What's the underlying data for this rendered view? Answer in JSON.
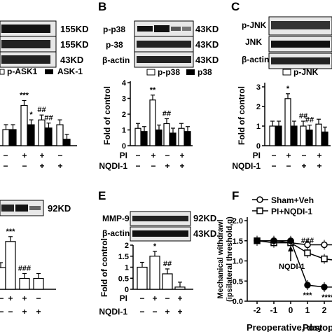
{
  "figure": {
    "panel_letters": {
      "B": "B",
      "C": "C",
      "E": "E",
      "F": "F"
    },
    "blot_a": {
      "rows": [
        "155KD",
        "155KD",
        "43KD"
      ]
    },
    "blot_b": {
      "left": [
        "p-p38",
        "p-38",
        "β-actin"
      ],
      "right": [
        "43KD",
        "43KD",
        "43KD"
      ]
    },
    "blot_c": {
      "left": [
        "p-JNK",
        "JNK",
        "β-actin"
      ]
    },
    "blot_d": {
      "right": "92KD"
    },
    "blot_e": {
      "left": [
        "MMP-9",
        "β-actin"
      ],
      "right": [
        "92KD",
        "43KD"
      ]
    },
    "cond": {
      "pi": "PI",
      "nqdi": "NQDI-1",
      "minus": "−",
      "plus": "+"
    },
    "colors": {
      "ink": "#000000",
      "paper": "#ffffff",
      "blot_bg": "#e8e8e8",
      "band": "#111111"
    }
  },
  "chart_data": [
    {
      "type": "bar",
      "panel": "A",
      "legend": [
        "p-ASK1",
        "ASK-1"
      ],
      "series": [
        {
          "name": "p-ASK1",
          "values": [
            1.0,
            2.5,
            1.6,
            1.3
          ]
        },
        {
          "name": "ASK-1",
          "values": [
            1.0,
            1.3,
            1.1,
            0.4
          ]
        }
      ],
      "annotations": [
        {
          "text": "***",
          "bar": 1,
          "series": 0
        },
        {
          "text": "*",
          "bar": 1,
          "series": 1
        },
        {
          "text": "##",
          "bar": 2,
          "series": 0
        },
        {
          "text": "##",
          "bar": 2,
          "series": 1
        }
      ],
      "conditions": {
        "PI": [
          "−",
          "+",
          "+",
          "−"
        ],
        "NQDI-1": [
          "−",
          "−",
          "+",
          "+"
        ]
      },
      "ylim": [
        0,
        4
      ]
    },
    {
      "type": "bar",
      "panel": "B",
      "legend": [
        "p-p38",
        "p38"
      ],
      "ylabel": "Fold of control",
      "ylim": [
        0,
        4
      ],
      "yticks": [
        0,
        1,
        2,
        3,
        4
      ],
      "series": [
        {
          "name": "p-p38",
          "values": [
            1.1,
            2.9,
            1.4,
            1.1
          ]
        },
        {
          "name": "p38",
          "values": [
            0.9,
            1.0,
            0.8,
            0.9
          ]
        }
      ],
      "annotations": [
        {
          "text": "**",
          "bar": 1,
          "series": 0
        },
        {
          "text": "##",
          "bar": 2,
          "series": 0
        }
      ],
      "conditions": {
        "PI": [
          "−",
          "+",
          "−",
          "+"
        ],
        "NQDI-1": [
          "−",
          "−",
          "+",
          "+"
        ]
      }
    },
    {
      "type": "bar",
      "panel": "C",
      "legend": [
        "p-JNK"
      ],
      "ylabel": "Fold of control",
      "ylim": [
        0,
        3
      ],
      "yticks": [
        0,
        1,
        2,
        3
      ],
      "series": [
        {
          "name": "p-JNK",
          "values": [
            1.0,
            2.4,
            1.0,
            1.1
          ]
        },
        {
          "name": "JNK",
          "values": [
            1.0,
            1.0,
            0.8,
            0.7
          ]
        }
      ],
      "annotations": [
        {
          "text": "*",
          "bar": 1,
          "series": 0
        },
        {
          "text": "##",
          "bar": 2,
          "series": 0
        },
        {
          "text": "##",
          "bar": 2,
          "series": 1
        }
      ],
      "conditions": {
        "PI": [
          "−",
          "+",
          "−",
          "+"
        ],
        "NQDI-1": [
          "−",
          "−",
          "+",
          "+"
        ]
      }
    },
    {
      "type": "bar",
      "panel": "D",
      "series": [
        {
          "values": [
            1.0,
            2.2,
            0.5,
            0.5
          ]
        }
      ],
      "annotations": [
        {
          "text": "***",
          "bar": 1
        },
        {
          "text": "###",
          "bar": 2
        }
      ],
      "conditions": {
        "PI": [
          "−",
          "+",
          "+",
          "−"
        ],
        "NQDI-1": [
          "−",
          "−",
          "+",
          "+"
        ]
      },
      "ylim": [
        0,
        3
      ]
    },
    {
      "type": "bar",
      "panel": "E",
      "ylabel": "Fold of control",
      "ylim": [
        0,
        2.0
      ],
      "yticks": [
        0.0,
        0.5,
        1.0,
        1.5,
        2.0
      ],
      "series": [
        {
          "values": [
            1.0,
            1.5,
            0.7,
            0.1
          ]
        }
      ],
      "annotations": [
        {
          "text": "*",
          "bar": 1
        },
        {
          "text": "##",
          "bar": 2
        }
      ],
      "conditions": {
        "PI": [
          "−",
          "+",
          "−",
          "+"
        ],
        "NQDI-1": [
          "−",
          "−",
          "+",
          "+"
        ]
      }
    },
    {
      "type": "line",
      "panel": "F",
      "ylabel_lines": [
        "Mechanical withdrawl",
        "(ipsilateral threshold,g)"
      ],
      "xlabel": "Preoperative, day",
      "xlabel_right": "Postop",
      "x_ticks": [
        "-2",
        "-1",
        "0",
        "1",
        "2"
      ],
      "x": [
        -2,
        -1,
        0,
        1,
        2,
        3
      ],
      "ylim": [
        0,
        2.0
      ],
      "yticks": [
        0.0,
        0.5,
        1.0,
        1.5,
        2.0
      ],
      "legend": [
        "Sham+Veh",
        "PI+NQDI-1"
      ],
      "arrow_label": "NQDI-1",
      "series": [
        {
          "name": "Sham+Veh",
          "marker": "open-circle",
          "values": [
            1.5,
            1.5,
            1.45,
            1.4,
            1.4,
            1.4
          ]
        },
        {
          "name": "PI+NQDI-1",
          "marker": "open-square",
          "values": [
            1.5,
            1.45,
            1.45,
            1.2,
            1.05,
            1.0
          ]
        },
        {
          "name": "",
          "marker": "filled-circle",
          "values": [
            1.5,
            1.5,
            1.5,
            0.4,
            0.35,
            0.35
          ]
        }
      ],
      "annotations": [
        {
          "text": "###",
          "x": 1
        },
        {
          "text": "#",
          "x": 2.8
        },
        {
          "text": "***",
          "x": 1
        },
        {
          "text": "****",
          "x": 2.2
        }
      ]
    }
  ]
}
